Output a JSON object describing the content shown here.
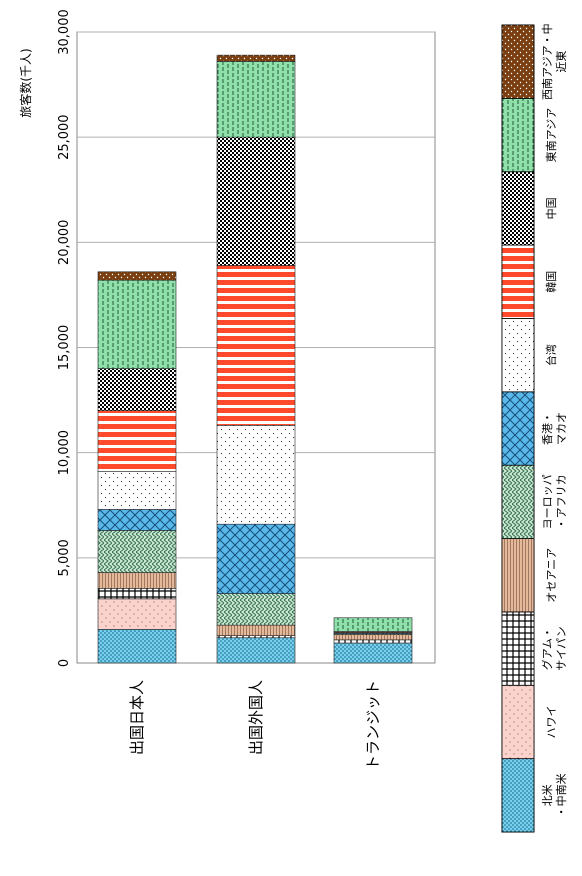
{
  "chart_data": {
    "type": "bar",
    "stacked": true,
    "orientation": "horizontal",
    "ylabel": "旅客数(千人)",
    "xlim": [
      0,
      30000
    ],
    "ticks": [
      "0",
      "5,000",
      "10,000",
      "15,000",
      "20,000",
      "25,000",
      "30,000"
    ],
    "tick_values": [
      0,
      5000,
      10000,
      15000,
      20000,
      25000,
      30000
    ],
    "grid": true,
    "legend_position": "right",
    "categories": [
      "出国日本人",
      "出国外国人",
      "トランジット"
    ],
    "series": [
      {
        "name": "北米・中南米",
        "color": "#75d1f0",
        "values": [
          1600,
          1200,
          950
        ]
      },
      {
        "name": "ハワイ",
        "color": "#f9d3cc",
        "values": [
          1450,
          0,
          0
        ]
      },
      {
        "name": "グアム・サイパン",
        "color": "#ffffff",
        "values": [
          500,
          100,
          150
        ]
      },
      {
        "name": "オセアニア",
        "color": "#e6b89a",
        "values": [
          750,
          500,
          250
        ]
      },
      {
        "name": "ヨーロッパ・アフリカ",
        "color": "#c8e6d2",
        "values": [
          2000,
          1500,
          50
        ]
      },
      {
        "name": "香港・マカオ",
        "color": "#5bb8ea",
        "values": [
          1000,
          3300,
          50
        ]
      },
      {
        "name": "台湾",
        "color": "#ffffff",
        "values": [
          1800,
          4700,
          0
        ]
      },
      {
        "name": "韓国",
        "color": "#ff4b2b",
        "values": [
          2900,
          7600,
          50
        ]
      },
      {
        "name": "中国",
        "color": "#ffffff",
        "values": [
          2000,
          6100,
          0
        ]
      },
      {
        "name": "東南アジア",
        "color": "#8fe0ab",
        "values": [
          4200,
          3600,
          650
        ]
      },
      {
        "name": "西南アジア・中近東",
        "color": "#8b4513",
        "values": [
          400,
          300,
          0
        ]
      }
    ]
  }
}
